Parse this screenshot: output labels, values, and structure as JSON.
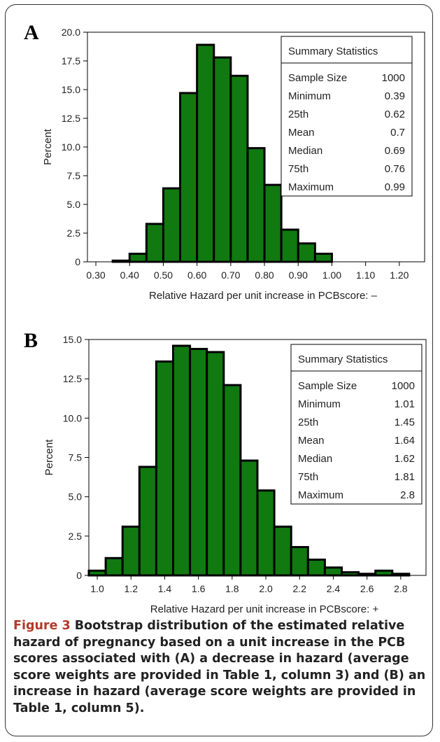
{
  "colors": {
    "bar_fill": "#107a10",
    "bar_stroke": "#000000",
    "caption_label": "#b3392a"
  },
  "panels": [
    {
      "letter": "A",
      "stats_title": "Summary Statistics",
      "stats": [
        {
          "label": "Sample Size",
          "value": "1000"
        },
        {
          "label": "Minimum",
          "value": "0.39"
        },
        {
          "label": "25th",
          "value": "0.62"
        },
        {
          "label": "Mean",
          "value": "0.7"
        },
        {
          "label": "Median",
          "value": "0.69"
        },
        {
          "label": "75th",
          "value": "0.76"
        },
        {
          "label": "Maximum",
          "value": "0.99"
        }
      ]
    },
    {
      "letter": "B",
      "stats_title": "Summary Statistics",
      "stats": [
        {
          "label": "Sample Size",
          "value": "1000"
        },
        {
          "label": "Minimum",
          "value": "1.01"
        },
        {
          "label": "25th",
          "value": "1.45"
        },
        {
          "label": "Mean",
          "value": "1.64"
        },
        {
          "label": "Median",
          "value": "1.62"
        },
        {
          "label": "75th",
          "value": "1.81"
        },
        {
          "label": "Maximum",
          "value": "2.8"
        }
      ]
    }
  ],
  "chart_data": [
    {
      "type": "bar",
      "ylabel": "Percent",
      "xlabel": "Relative Hazard per unit increase in PCBscore: –",
      "ylim": [
        0,
        20
      ],
      "xlim": [
        0.275,
        1.275
      ],
      "yticks": [
        "0",
        "2.5",
        "5.0",
        "7.5",
        "10.0",
        "12.5",
        "15.0",
        "17.5",
        "20.0"
      ],
      "xticks": [
        "0.30",
        "0.40",
        "0.50",
        "0.60",
        "0.70",
        "0.80",
        "0.90",
        "1.00",
        "1.10",
        "1.20"
      ],
      "bin_width": 0.05,
      "bins": [
        {
          "x": 0.375,
          "value": 0.1
        },
        {
          "x": 0.425,
          "value": 0.7
        },
        {
          "x": 0.475,
          "value": 3.3
        },
        {
          "x": 0.525,
          "value": 6.4
        },
        {
          "x": 0.575,
          "value": 14.7
        },
        {
          "x": 0.625,
          "value": 18.9
        },
        {
          "x": 0.675,
          "value": 17.8
        },
        {
          "x": 0.725,
          "value": 16.2
        },
        {
          "x": 0.775,
          "value": 9.9
        },
        {
          "x": 0.825,
          "value": 6.7
        },
        {
          "x": 0.875,
          "value": 2.8
        },
        {
          "x": 0.925,
          "value": 1.6
        },
        {
          "x": 0.975,
          "value": 0.7
        }
      ]
    },
    {
      "type": "bar",
      "ylabel": "Percent",
      "xlabel": "Relative Hazard per unit increase in PCBscore: +",
      "ylim": [
        0,
        15
      ],
      "xlim": [
        0.95,
        2.95
      ],
      "yticks": [
        "0",
        "2.5",
        "5.0",
        "7.5",
        "10.0",
        "12.5",
        "15.0"
      ],
      "xticks": [
        "1.0",
        "1.2",
        "1.4",
        "1.6",
        "1.8",
        "2.0",
        "2.2",
        "2.4",
        "2.6",
        "2.8"
      ],
      "bin_width": 0.1,
      "bins": [
        {
          "x": 1.0,
          "value": 0.3
        },
        {
          "x": 1.1,
          "value": 1.1
        },
        {
          "x": 1.2,
          "value": 3.1
        },
        {
          "x": 1.3,
          "value": 6.9
        },
        {
          "x": 1.4,
          "value": 13.6
        },
        {
          "x": 1.5,
          "value": 14.6
        },
        {
          "x": 1.6,
          "value": 14.4
        },
        {
          "x": 1.7,
          "value": 14.2
        },
        {
          "x": 1.8,
          "value": 12.1
        },
        {
          "x": 1.9,
          "value": 7.3
        },
        {
          "x": 2.0,
          "value": 5.4
        },
        {
          "x": 2.1,
          "value": 3.1
        },
        {
          "x": 2.2,
          "value": 1.8
        },
        {
          "x": 2.3,
          "value": 1.0
        },
        {
          "x": 2.4,
          "value": 0.5
        },
        {
          "x": 2.5,
          "value": 0.2
        },
        {
          "x": 2.6,
          "value": 0.1
        },
        {
          "x": 2.7,
          "value": 0.3
        },
        {
          "x": 2.8,
          "value": 0.1
        }
      ]
    }
  ],
  "caption": {
    "label": "Figure 3",
    "text": " Bootstrap distribution of the estimated relative hazard of pregnancy based on a unit increase in the PCB scores associated with (A) a decrease in hazard (average score weights are provided in Table 1, column 3) and (B) an increase in hazard (average score weights are provided in Table 1, column 5)."
  }
}
